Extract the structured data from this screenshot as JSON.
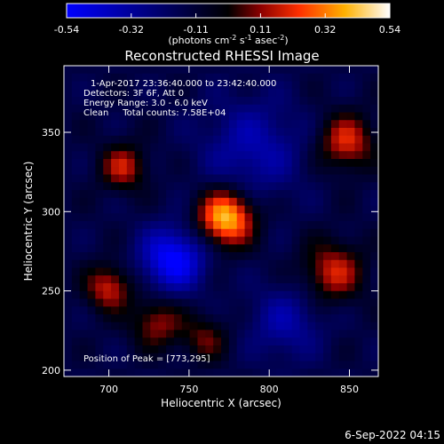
{
  "chart_data": {
    "type": "heatmap",
    "title": "Reconstructed RHESSI Image",
    "xlabel": "Heliocentric X (arcsec)",
    "ylabel": "Heliocentric Y (arcsec)",
    "xlim": [
      672,
      868
    ],
    "ylim": [
      196,
      392
    ],
    "xticks": [
      700,
      750,
      800,
      850
    ],
    "yticks": [
      200,
      250,
      300,
      350
    ],
    "grid": false,
    "colorbar": {
      "min": -0.54,
      "max": 0.54,
      "ticks": [
        "-0.54",
        "-0.32",
        "-0.11",
        "0.11",
        "0.32",
        "0.54"
      ],
      "label_main": "(photons cm",
      "label_exp1": "-2",
      "label_mid": " s",
      "label_exp2": "-1",
      "label_tail": " asec",
      "label_exp3": "-2",
      "label_close": ")",
      "colormap": [
        "#0000ff",
        "#000000",
        "#ff0000",
        "#ffff00",
        "#ffffff"
      ]
    },
    "annotations": {
      "time_range": "1-Apr-2017 23:36:40.000 to 23:42:40.000",
      "detectors": "Detectors: 3F 6F, Att 0",
      "energy": "Energy Range: 3.0 - 6.0 keV",
      "clean": "Clean     Total counts: 7.58E+04",
      "peak": "Position of Peak = [773,295]"
    },
    "peak": [
      773,
      295
    ],
    "sources": [
      {
        "x": 773,
        "y": 296,
        "amp": 0.58,
        "sigma": 12
      },
      {
        "x": 709,
        "y": 328,
        "amp": 0.3,
        "sigma": 10
      },
      {
        "x": 848,
        "y": 344,
        "amp": 0.34,
        "sigma": 12
      },
      {
        "x": 840,
        "y": 262,
        "amp": 0.32,
        "sigma": 13
      },
      {
        "x": 700,
        "y": 252,
        "amp": 0.32,
        "sigma": 10
      },
      {
        "x": 730,
        "y": 230,
        "amp": 0.26,
        "sigma": 11
      },
      {
        "x": 760,
        "y": 220,
        "amp": 0.2,
        "sigma": 10
      },
      {
        "x": 740,
        "y": 270,
        "amp": -0.42,
        "sigma": 14
      },
      {
        "x": 790,
        "y": 340,
        "amp": -0.22,
        "sigma": 22
      },
      {
        "x": 810,
        "y": 230,
        "amp": -0.2,
        "sigma": 16
      }
    ],
    "grid_size": 40
  },
  "footer": {
    "timestamp": "6-Sep-2022 04:15"
  }
}
